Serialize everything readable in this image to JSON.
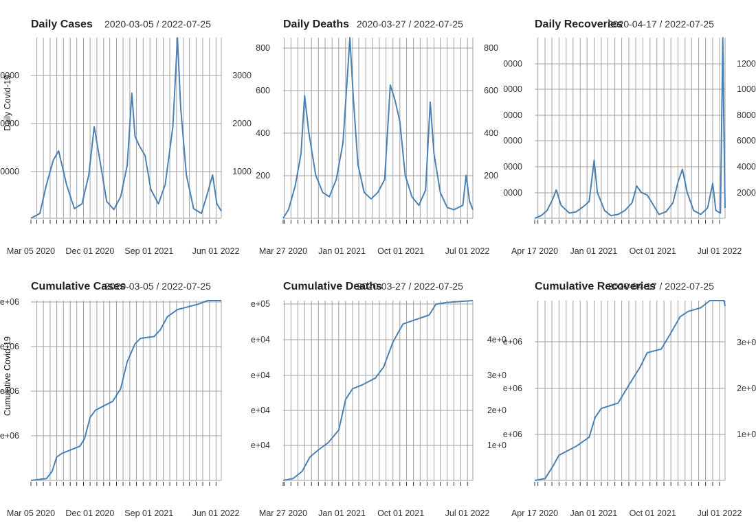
{
  "color_line": "#4a80b3",
  "color_grid": "#a0a0a0",
  "chart_data": [
    {
      "type": "line",
      "title": "Daily Cases",
      "subtitle": "2020-03-05 / 2022-07-25",
      "ylabel": "Daily Covid-19",
      "x_range": [
        "2020-03-05",
        "2022-07-25"
      ],
      "x_ticks": [
        "Mar 05 2020",
        "Dec 01 2020",
        "Sep 01 2021",
        "Jun 01 2022"
      ],
      "y_left_ticks": [
        "0000",
        "0000",
        "0000"
      ],
      "y_right_ticks": [
        "1000",
        "2000",
        "3000"
      ],
      "ylim": [
        0,
        3750
      ],
      "grid": true,
      "series_points": [
        [
          "2020-03-05",
          0
        ],
        [
          "2020-04-15",
          100
        ],
        [
          "2020-05-15",
          700
        ],
        [
          "2020-06-15",
          1200
        ],
        [
          "2020-07-10",
          1400
        ],
        [
          "2020-08-15",
          700
        ],
        [
          "2020-09-20",
          200
        ],
        [
          "2020-10-25",
          300
        ],
        [
          "2020-11-25",
          900
        ],
        [
          "2020-12-20",
          1900
        ],
        [
          "2021-01-15",
          1200
        ],
        [
          "2021-02-15",
          350
        ],
        [
          "2021-03-20",
          180
        ],
        [
          "2021-04-20",
          450
        ],
        [
          "2021-05-20",
          1100
        ],
        [
          "2021-06-10",
          2600
        ],
        [
          "2021-06-25",
          1700
        ],
        [
          "2021-07-15",
          1500
        ],
        [
          "2021-08-10",
          1300
        ],
        [
          "2021-09-05",
          600
        ],
        [
          "2021-10-10",
          300
        ],
        [
          "2021-11-10",
          700
        ],
        [
          "2021-12-15",
          1900
        ],
        [
          "2022-01-05",
          3750
        ],
        [
          "2022-01-20",
          2300
        ],
        [
          "2022-02-15",
          900
        ],
        [
          "2022-03-20",
          200
        ],
        [
          "2022-04-25",
          100
        ],
        [
          "2022-05-25",
          550
        ],
        [
          "2022-06-15",
          900
        ],
        [
          "2022-07-05",
          300
        ],
        [
          "2022-07-25",
          150
        ]
      ]
    },
    {
      "type": "line",
      "title": "Daily Deaths",
      "subtitle": "2020-03-27 / 2022-07-25",
      "x_range": [
        "2020-03-27",
        "2022-07-25"
      ],
      "x_ticks": [
        "Mar 27 2020",
        "Jan 01 2021",
        "Oct 01 2021",
        "Jul 01 2022"
      ],
      "y_left_ticks": [
        "200",
        "400",
        "600",
        "800"
      ],
      "y_right_ticks": [
        "200",
        "400",
        "600",
        "800"
      ],
      "ylim": [
        0,
        840
      ],
      "grid": true,
      "series_points": [
        [
          "2020-03-27",
          0
        ],
        [
          "2020-04-20",
          40
        ],
        [
          "2020-05-20",
          150
        ],
        [
          "2020-06-15",
          300
        ],
        [
          "2020-07-01",
          570
        ],
        [
          "2020-07-20",
          400
        ],
        [
          "2020-08-20",
          200
        ],
        [
          "2020-09-20",
          120
        ],
        [
          "2020-10-20",
          100
        ],
        [
          "2020-11-20",
          180
        ],
        [
          "2020-12-20",
          350
        ],
        [
          "2021-01-05",
          600
        ],
        [
          "2021-01-20",
          840
        ],
        [
          "2021-02-05",
          550
        ],
        [
          "2021-02-25",
          250
        ],
        [
          "2021-03-25",
          120
        ],
        [
          "2021-04-25",
          90
        ],
        [
          "2021-05-25",
          120
        ],
        [
          "2021-06-25",
          180
        ],
        [
          "2021-07-20",
          620
        ],
        [
          "2021-08-10",
          550
        ],
        [
          "2021-09-01",
          450
        ],
        [
          "2021-09-25",
          200
        ],
        [
          "2021-10-25",
          100
        ],
        [
          "2021-11-25",
          60
        ],
        [
          "2021-12-25",
          130
        ],
        [
          "2022-01-15",
          540
        ],
        [
          "2022-02-01",
          300
        ],
        [
          "2022-03-01",
          120
        ],
        [
          "2022-04-01",
          50
        ],
        [
          "2022-05-01",
          40
        ],
        [
          "2022-06-10",
          60
        ],
        [
          "2022-06-25",
          200
        ],
        [
          "2022-07-10",
          80
        ],
        [
          "2022-07-25",
          40
        ]
      ]
    },
    {
      "type": "line",
      "title": "Daily Recoveries",
      "subtitle": "2020-04-17 / 2022-07-25",
      "x_range": [
        "2020-04-17",
        "2022-07-25"
      ],
      "x_ticks": [
        "Apr 17 2020",
        "Jan 01 2021",
        "Oct 01 2021",
        "Jul 01 2022"
      ],
      "y_left_ticks": [
        "0000",
        "0000",
        "0000",
        "0000",
        "0000",
        "0000"
      ],
      "y_right_ticks": [
        "2000",
        "4000",
        "6000",
        "8000",
        "1000",
        "1200"
      ],
      "ylim": [
        0,
        1400
      ],
      "grid": true,
      "series_points": [
        [
          "2020-04-17",
          0
        ],
        [
          "2020-05-15",
          20
        ],
        [
          "2020-06-10",
          60
        ],
        [
          "2020-07-05",
          150
        ],
        [
          "2020-07-20",
          220
        ],
        [
          "2020-08-10",
          100
        ],
        [
          "2020-09-15",
          40
        ],
        [
          "2020-10-15",
          50
        ],
        [
          "2020-11-15",
          90
        ],
        [
          "2020-12-10",
          130
        ],
        [
          "2021-01-01",
          450
        ],
        [
          "2021-01-15",
          200
        ],
        [
          "2021-02-15",
          60
        ],
        [
          "2021-03-15",
          20
        ],
        [
          "2021-04-15",
          30
        ],
        [
          "2021-05-15",
          60
        ],
        [
          "2021-06-15",
          120
        ],
        [
          "2021-07-05",
          250
        ],
        [
          "2021-07-25",
          200
        ],
        [
          "2021-08-20",
          180
        ],
        [
          "2021-09-10",
          120
        ],
        [
          "2021-10-10",
          30
        ],
        [
          "2021-11-10",
          50
        ],
        [
          "2021-12-10",
          120
        ],
        [
          "2022-01-01",
          280
        ],
        [
          "2022-01-20",
          380
        ],
        [
          "2022-02-10",
          200
        ],
        [
          "2022-03-10",
          60
        ],
        [
          "2022-04-10",
          30
        ],
        [
          "2022-05-10",
          80
        ],
        [
          "2022-06-01",
          270
        ],
        [
          "2022-06-15",
          60
        ],
        [
          "2022-07-05",
          40
        ],
        [
          "2022-07-15",
          1400
        ],
        [
          "2022-07-20",
          700
        ],
        [
          "2022-07-25",
          80
        ]
      ]
    },
    {
      "type": "line",
      "title": "Cumulative Cases",
      "subtitle": "2020-03-05 / 2022-07-25",
      "ylabel": "Cumulative Covid-19",
      "x_range": [
        "2020-03-05",
        "2022-07-25"
      ],
      "x_ticks": [
        "Mar 05 2020",
        "Dec 01 2020",
        "Sep 01 2021",
        "Jun 01 2022"
      ],
      "y_left_ticks": [
        "e+06",
        "e+06",
        "e+06",
        "e+06"
      ],
      "y_right_ticks": [],
      "ylim": [
        0,
        1
      ],
      "grid": true,
      "series_points": [
        [
          "2020-03-05",
          0.0
        ],
        [
          "2020-05-15",
          0.01
        ],
        [
          "2020-06-10",
          0.05
        ],
        [
          "2020-07-01",
          0.13
        ],
        [
          "2020-07-25",
          0.15
        ],
        [
          "2020-10-15",
          0.19
        ],
        [
          "2020-11-05",
          0.23
        ],
        [
          "2020-12-01",
          0.35
        ],
        [
          "2020-12-25",
          0.39
        ],
        [
          "2021-03-15",
          0.44
        ],
        [
          "2021-04-20",
          0.51
        ],
        [
          "2021-05-20",
          0.66
        ],
        [
          "2021-06-25",
          0.76
        ],
        [
          "2021-07-20",
          0.79
        ],
        [
          "2021-09-20",
          0.8
        ],
        [
          "2021-10-20",
          0.84
        ],
        [
          "2021-11-20",
          0.91
        ],
        [
          "2022-01-05",
          0.95
        ],
        [
          "2022-04-10",
          0.98
        ],
        [
          "2022-05-25",
          1.0
        ],
        [
          "2022-07-25",
          1.0
        ]
      ]
    },
    {
      "type": "line",
      "title": "Cumulative Deaths",
      "subtitle": "2020-03-27 / 2022-07-25",
      "x_range": [
        "2020-03-27",
        "2022-07-25"
      ],
      "x_ticks": [
        "Mar 27 2020",
        "Jan 01 2021",
        "Oct 01 2021",
        "Jul 01 2022"
      ],
      "y_left_ticks": [
        "e+04",
        "e+04",
        "e+04",
        "e+04",
        "e+05"
      ],
      "y_right_ticks": [
        "1e+0",
        "2e+0",
        "3e+0",
        "4e+0"
      ],
      "ylim": [
        0,
        1
      ],
      "grid": true,
      "series_points": [
        [
          "2020-03-27",
          0.0
        ],
        [
          "2020-05-10",
          0.01
        ],
        [
          "2020-06-20",
          0.05
        ],
        [
          "2020-07-25",
          0.13
        ],
        [
          "2020-09-01",
          0.17
        ],
        [
          "2020-10-15",
          0.21
        ],
        [
          "2020-12-01",
          0.28
        ],
        [
          "2021-01-01",
          0.45
        ],
        [
          "2021-02-01",
          0.51
        ],
        [
          "2021-03-15",
          0.53
        ],
        [
          "2021-05-15",
          0.57
        ],
        [
          "2021-06-20",
          0.63
        ],
        [
          "2021-08-01",
          0.77
        ],
        [
          "2021-09-15",
          0.87
        ],
        [
          "2021-11-01",
          0.89
        ],
        [
          "2022-01-10",
          0.92
        ],
        [
          "2022-02-10",
          0.98
        ],
        [
          "2022-04-01",
          0.99
        ],
        [
          "2022-07-25",
          1.0
        ]
      ]
    },
    {
      "type": "line",
      "title": "Cumulative Recoveries",
      "subtitle": "2020-04-17 / 2022-07-25",
      "x_range": [
        "2020-04-17",
        "2022-07-25"
      ],
      "x_ticks": [
        "Apr 17 2020",
        "Jan 01 2021",
        "Oct 01 2021",
        "Jul 01 2022"
      ],
      "y_left_ticks": [
        "e+06",
        "e+06",
        "e+06"
      ],
      "y_right_ticks": [
        "1e+0",
        "2e+0",
        "3e+0"
      ],
      "ylim": [
        0,
        1
      ],
      "grid": true,
      "series_points": [
        [
          "2020-04-17",
          0.0
        ],
        [
          "2020-06-01",
          0.01
        ],
        [
          "2020-07-01",
          0.07
        ],
        [
          "2020-08-01",
          0.14
        ],
        [
          "2020-10-15",
          0.19
        ],
        [
          "2020-12-10",
          0.24
        ],
        [
          "2021-01-05",
          0.35
        ],
        [
          "2021-02-01",
          0.4
        ],
        [
          "2021-04-15",
          0.43
        ],
        [
          "2021-06-01",
          0.53
        ],
        [
          "2021-07-20",
          0.63
        ],
        [
          "2021-08-20",
          0.71
        ],
        [
          "2021-10-20",
          0.73
        ],
        [
          "2021-12-01",
          0.82
        ],
        [
          "2022-01-10",
          0.91
        ],
        [
          "2022-02-15",
          0.94
        ],
        [
          "2022-04-10",
          0.96
        ],
        [
          "2022-05-20",
          1.0
        ],
        [
          "2022-07-20",
          1.0
        ],
        [
          "2022-07-25",
          0.97
        ]
      ]
    }
  ]
}
